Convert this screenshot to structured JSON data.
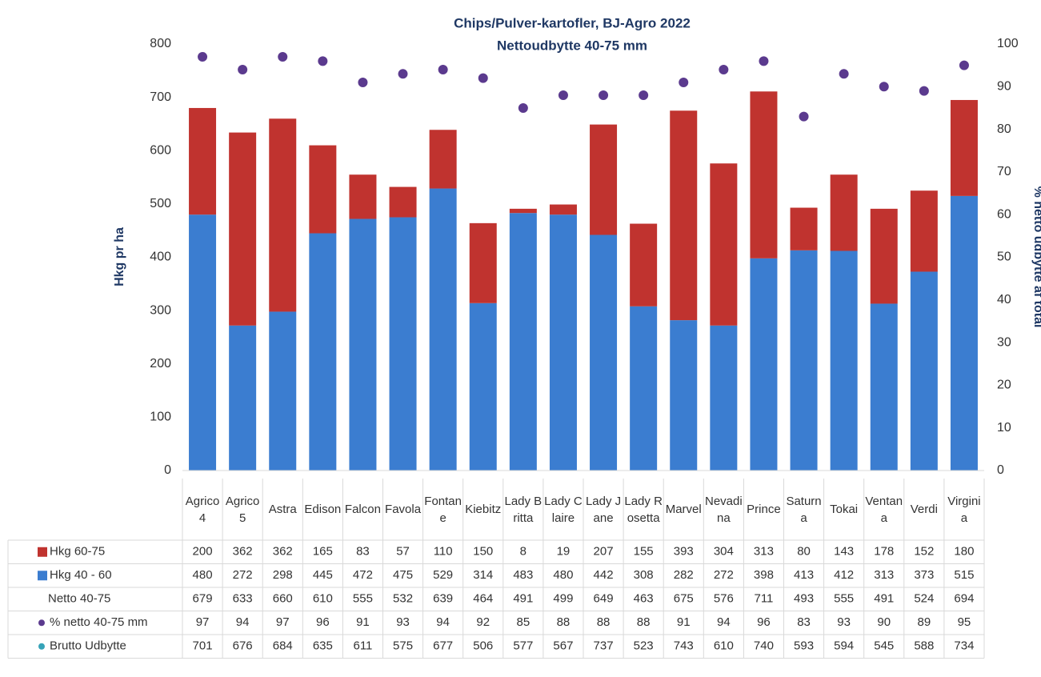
{
  "chart_data": {
    "type": "bar",
    "title": "Chips/Pulver-kartofler, BJ-Agro 2022",
    "subtitle": "Nettoudbytte 40-75 mm",
    "y_label": "Hkg pr ha",
    "y2_label": "% netto udbytte af total",
    "categories": [
      "Agrico 4",
      "Agrico 5",
      "Astra",
      "Edison",
      "Falcon",
      "Favola",
      "Fontane",
      "Kiebitz",
      "Lady Britta",
      "Lady Claire",
      "Lady Jane",
      "Lady Rosetta",
      "Marvel",
      "Nevadina",
      "Prince",
      "Saturna",
      "Tokai",
      "Ventana",
      "Verdi",
      "Virginia"
    ],
    "series": [
      {
        "name": "Hkg 60-75",
        "type": "bar",
        "color": "#c0332f",
        "values": [
          200,
          362,
          362,
          165,
          83,
          57,
          110,
          150,
          8,
          19,
          207,
          155,
          393,
          304,
          313,
          80,
          143,
          178,
          152,
          180
        ]
      },
      {
        "name": "Hkg 40 - 60",
        "type": "bar",
        "color": "#3b7dd0",
        "values": [
          480,
          272,
          298,
          445,
          472,
          475,
          529,
          314,
          483,
          480,
          442,
          308,
          282,
          272,
          398,
          413,
          412,
          313,
          373,
          515
        ]
      },
      {
        "name": "Netto 40-75",
        "values": [
          679,
          633,
          660,
          610,
          555,
          532,
          639,
          464,
          491,
          499,
          649,
          463,
          675,
          576,
          711,
          493,
          555,
          491,
          524,
          694
        ]
      },
      {
        "name": "% netto 40-75 mm",
        "type": "marker",
        "axis": "y2",
        "color": "#5b3a8e",
        "values": [
          97,
          94,
          97,
          96,
          91,
          93,
          94,
          92,
          85,
          88,
          88,
          88,
          91,
          94,
          96,
          83,
          93,
          90,
          89,
          95
        ]
      },
      {
        "name": "Brutto Udbytte",
        "type": "marker",
        "axis": "y2",
        "color": "#36a3b8",
        "values": [
          701,
          676,
          684,
          635,
          611,
          575,
          677,
          506,
          577,
          567,
          737,
          523,
          743,
          610,
          740,
          593,
          594,
          545,
          588,
          734
        ]
      }
    ],
    "stacked": true,
    "ylim": [
      0,
      800
    ],
    "yticks": [
      0,
      100,
      200,
      300,
      400,
      500,
      600,
      700,
      800
    ],
    "y2lim": [
      0,
      100
    ],
    "y2ticks": [
      0,
      10,
      20,
      30,
      40,
      50,
      60,
      70,
      80,
      90,
      100
    ]
  }
}
